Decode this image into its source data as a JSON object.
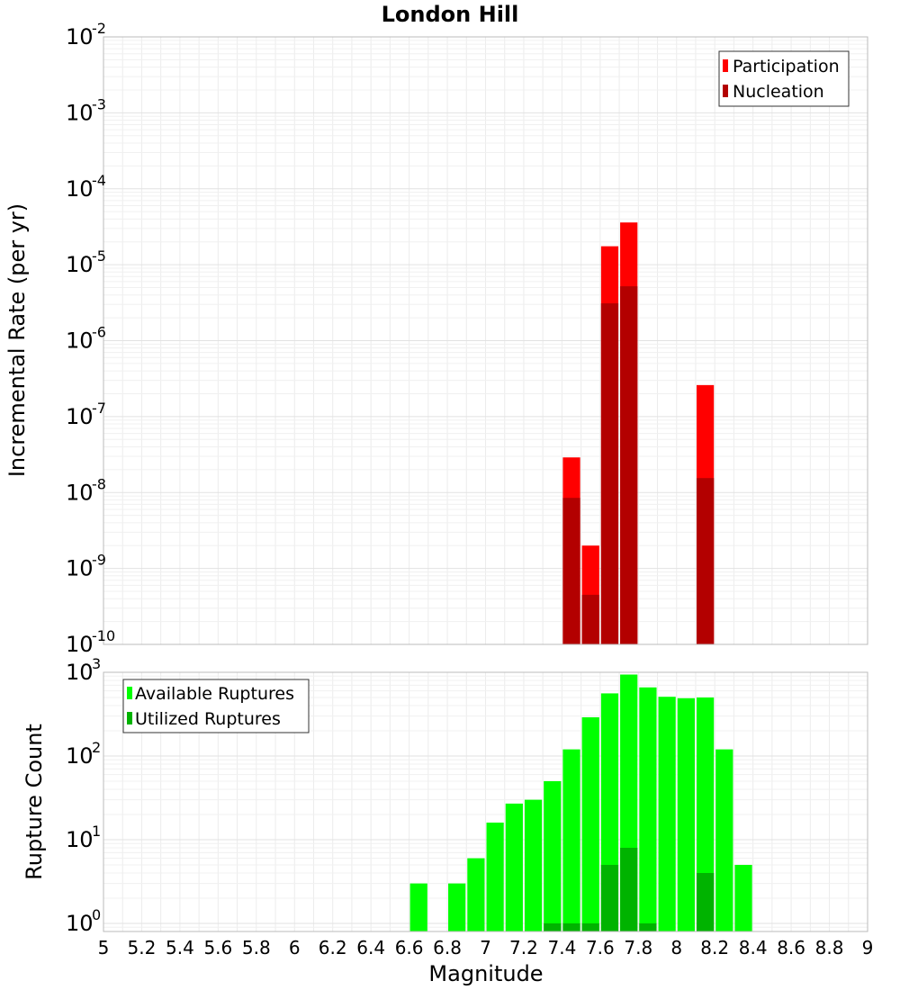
{
  "chart_data": [
    {
      "type": "bar",
      "title": "London Hill",
      "xlabel": "",
      "ylabel": "Incremental Rate (per yr)",
      "yscale": "log",
      "ylim": [
        1e-10,
        0.01
      ],
      "xlim": [
        5,
        9
      ],
      "grid": true,
      "legend_position": "top-right",
      "x": [
        7.45,
        7.55,
        7.65,
        7.75,
        8.15
      ],
      "series": [
        {
          "name": "Participation",
          "color": "#ff0000",
          "values": [
            2.9e-08,
            2e-09,
            1.75e-05,
            3.6e-05,
            2.6e-07
          ]
        },
        {
          "name": "Nucleation",
          "color": "#b30000",
          "values": [
            8.5e-09,
            4.5e-10,
            3.1e-06,
            5.2e-06,
            1.55e-08
          ]
        }
      ]
    },
    {
      "type": "bar",
      "title": "",
      "xlabel": "Magnitude",
      "ylabel": "Rupture Count",
      "yscale": "log",
      "ylim": [
        0.8,
        1000
      ],
      "xlim": [
        5,
        9
      ],
      "grid": true,
      "legend_position": "top-left",
      "x": [
        6.65,
        6.75,
        6.85,
        6.95,
        7.05,
        7.15,
        7.25,
        7.35,
        7.45,
        7.55,
        7.65,
        7.75,
        7.85,
        7.95,
        8.05,
        8.15,
        8.25,
        8.35
      ],
      "series": [
        {
          "name": "Available Ruptures",
          "color": "#00ff00",
          "values": [
            3,
            null,
            3,
            6,
            16,
            27,
            30,
            50,
            120,
            290,
            560,
            940,
            660,
            510,
            490,
            500,
            120,
            5
          ]
        },
        {
          "name": "Utilized Ruptures",
          "color": "#00b300",
          "values": [
            null,
            null,
            null,
            null,
            null,
            null,
            null,
            1,
            1,
            1,
            5,
            8,
            1,
            null,
            null,
            4,
            null,
            null
          ]
        }
      ]
    }
  ],
  "x_axis": {
    "ticks": [
      "5",
      "5.2",
      "5.4",
      "5.6",
      "5.8",
      "6",
      "6.2",
      "6.4",
      "6.6",
      "6.8",
      "7",
      "7.2",
      "7.4",
      "7.6",
      "7.8",
      "8",
      "8.2",
      "8.4",
      "8.6",
      "8.8",
      "9"
    ]
  },
  "top_y_ticks": [
    {
      "base": "10",
      "exp": "-10"
    },
    {
      "base": "10",
      "exp": "-9"
    },
    {
      "base": "10",
      "exp": "-8"
    },
    {
      "base": "10",
      "exp": "-7"
    },
    {
      "base": "10",
      "exp": "-6"
    },
    {
      "base": "10",
      "exp": "-5"
    },
    {
      "base": "10",
      "exp": "-4"
    },
    {
      "base": "10",
      "exp": "-3"
    },
    {
      "base": "10",
      "exp": "-2"
    }
  ],
  "bottom_y_ticks": [
    {
      "base": "10",
      "exp": "0"
    },
    {
      "base": "10",
      "exp": "1"
    },
    {
      "base": "10",
      "exp": "2"
    },
    {
      "base": "10",
      "exp": "3"
    }
  ]
}
